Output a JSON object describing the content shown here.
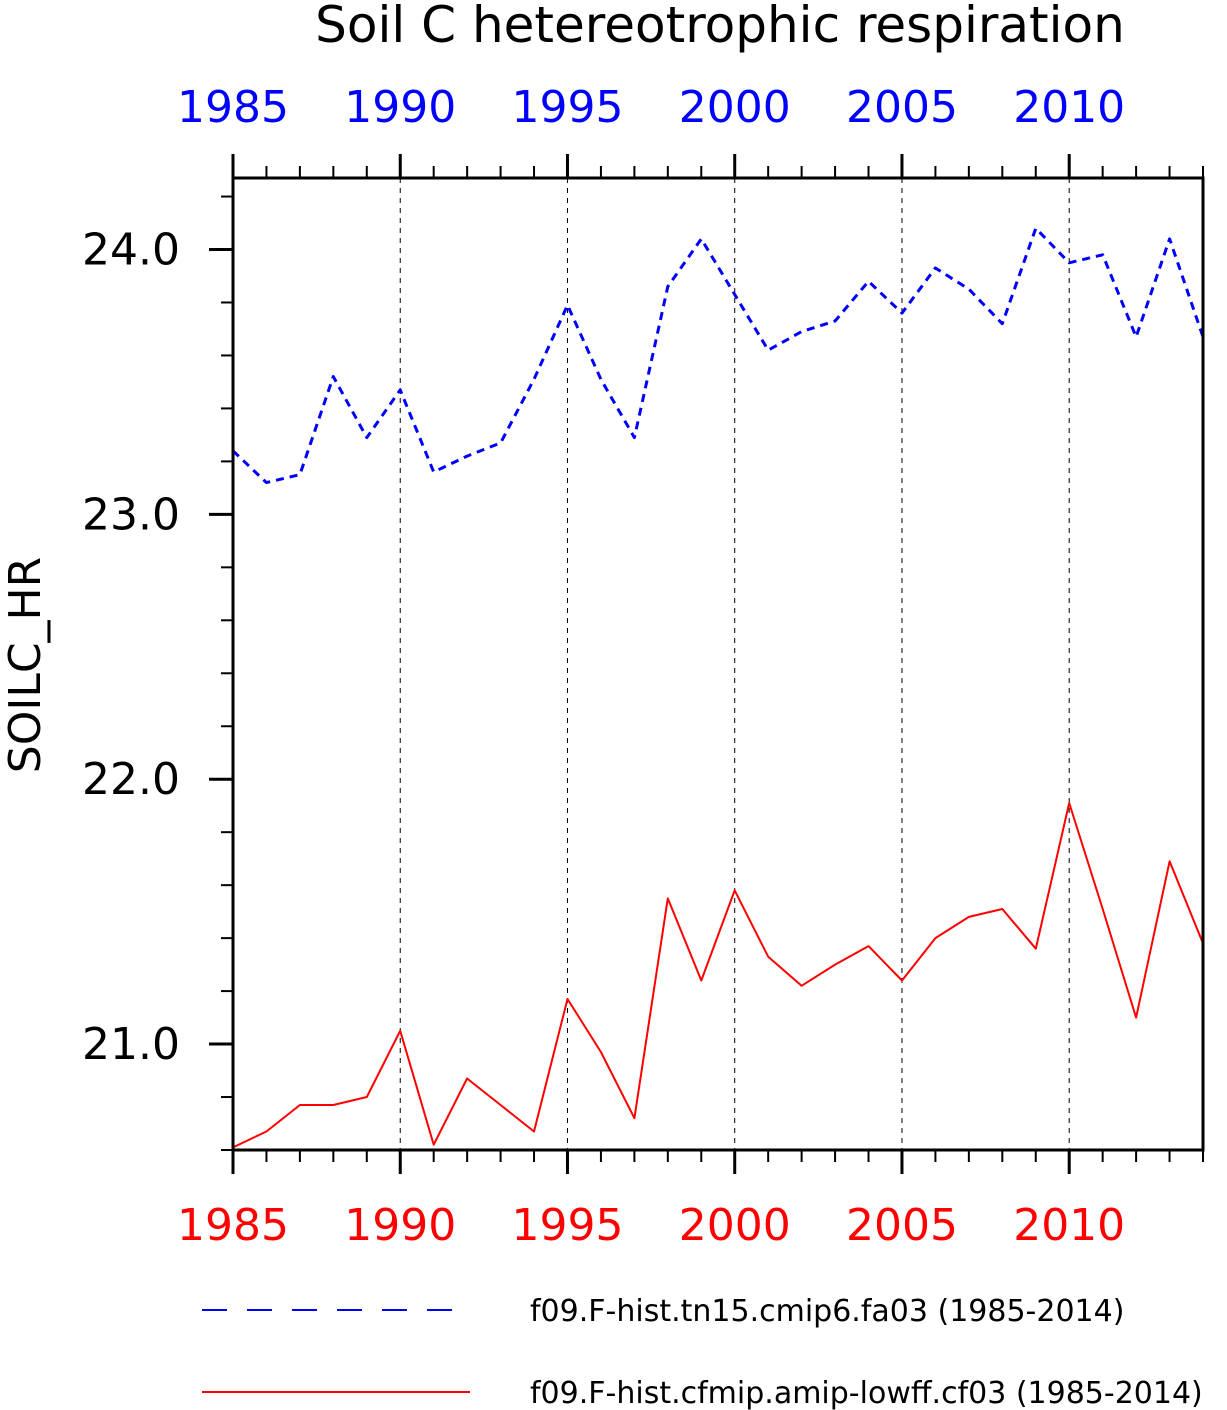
{
  "chart_data": {
    "type": "line",
    "title": "Soil C hetereotrophic respiration",
    "ylabel": "SOILC_HR",
    "xlabel": "",
    "xlim": [
      1985,
      2014
    ],
    "ylim": [
      20.6,
      24.27
    ],
    "y_ticks": [
      "21.0",
      "22.0",
      "23.0",
      "24.0"
    ],
    "x_ticks": [
      "1985",
      "1990",
      "1995",
      "2000",
      "2005",
      "2010"
    ],
    "vertical_gridlines": [
      1990,
      1995,
      2000,
      2005,
      2010
    ],
    "colors": {
      "top_axis": "#0000ff",
      "bottom_axis": "#ff0000"
    },
    "x": [
      1985,
      1986,
      1987,
      1988,
      1989,
      1990,
      1991,
      1992,
      1993,
      1994,
      1995,
      1996,
      1997,
      1998,
      1999,
      2000,
      2001,
      2002,
      2003,
      2004,
      2005,
      2006,
      2007,
      2008,
      2009,
      2010,
      2011,
      2012,
      2013,
      2014
    ],
    "series": [
      {
        "name": "f09.F-hist.tn15.cmip6.fa03 (1985-2014)",
        "color": "#0000ff",
        "dash": "dashed",
        "values": [
          23.24,
          23.12,
          23.15,
          23.52,
          23.29,
          23.47,
          23.16,
          23.22,
          23.27,
          23.51,
          23.79,
          23.51,
          23.29,
          23.86,
          24.04,
          23.83,
          23.62,
          23.69,
          23.73,
          23.88,
          23.76,
          23.93,
          23.85,
          23.72,
          24.08,
          23.95,
          23.98,
          23.67,
          24.04,
          23.67
        ]
      },
      {
        "name": "f09.F-hist.cfmip.amip-lowff.cf03 (1985-2014)",
        "color": "#ff0000",
        "dash": "solid",
        "values": [
          20.61,
          20.67,
          20.77,
          20.77,
          20.8,
          21.05,
          20.62,
          20.87,
          20.77,
          20.67,
          21.17,
          20.97,
          20.72,
          21.55,
          21.24,
          21.58,
          21.33,
          21.22,
          21.3,
          21.37,
          21.24,
          21.4,
          21.48,
          21.51,
          21.36,
          21.91,
          21.51,
          21.1,
          21.69,
          21.38
        ]
      }
    ]
  }
}
